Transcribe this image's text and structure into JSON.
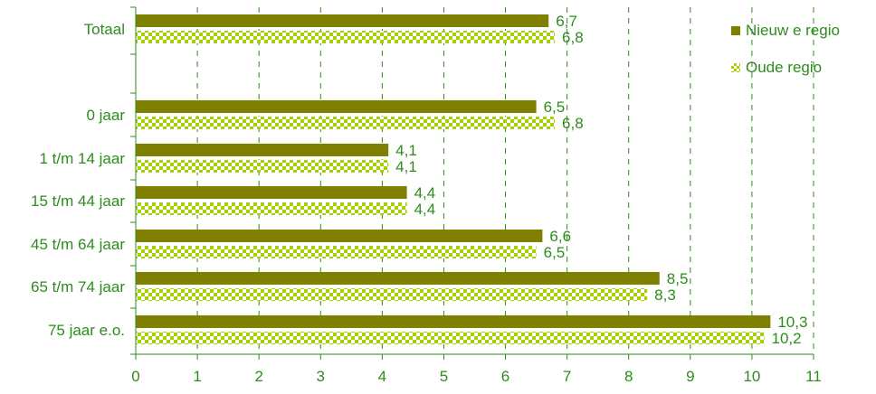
{
  "chart_data": {
    "type": "bar",
    "orientation": "horizontal",
    "categories": [
      "Totaal",
      "0 jaar",
      "1 t/m 14 jaar",
      "15 t/m 44 jaar",
      "45 t/m 64 jaar",
      "65 t/m 74 jaar",
      "75 jaar e.o."
    ],
    "series": [
      {
        "name": "Nieuw e regio",
        "values": [
          6.7,
          6.5,
          4.1,
          4.4,
          6.6,
          8.5,
          10.3
        ],
        "labels": [
          "6,7",
          "6,5",
          "4,1",
          "4,4",
          "6,6",
          "8,5",
          "10,3"
        ],
        "color": "#7f7f00",
        "fill": "solid"
      },
      {
        "name": "Oude regio",
        "values": [
          6.8,
          6.8,
          4.1,
          4.4,
          6.5,
          8.3,
          10.2
        ],
        "labels": [
          "6,8",
          "6,8",
          "4,1",
          "4,4",
          "6,5",
          "8,3",
          "10,2"
        ],
        "color": "#a8d000",
        "fill": "checkered"
      }
    ],
    "x_ticks": [
      "0",
      "1",
      "2",
      "3",
      "4",
      "5",
      "6",
      "7",
      "8",
      "9",
      "10",
      "11"
    ],
    "xlim": [
      0,
      11
    ],
    "grid": "vertical dashed",
    "legend_position": "top-right",
    "label_color": "#2e8b1e"
  }
}
